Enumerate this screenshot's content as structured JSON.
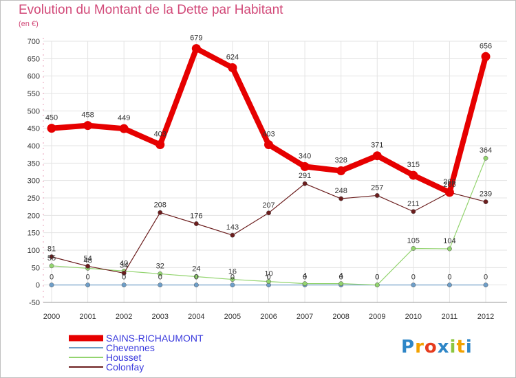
{
  "chart_data": {
    "type": "line",
    "title": "Evolution du Montant de la Dette par Habitant",
    "subtitle": "(en €)",
    "x": [
      "2000",
      "2001",
      "2002",
      "2003",
      "2004",
      "2005",
      "2006",
      "2007",
      "2008",
      "2009",
      "2010",
      "2011",
      "2012"
    ],
    "ylim": [
      -50,
      700
    ],
    "yticks": [
      -50,
      0,
      50,
      100,
      150,
      200,
      250,
      300,
      350,
      400,
      450,
      500,
      550,
      600,
      650,
      700
    ],
    "grid": true,
    "legend_position": "bottom-left",
    "series": [
      {
        "name": "SAINS-RICHAUMONT",
        "color": "#e60000",
        "values": [
          450,
          458,
          449,
          403,
          679,
          624,
          403,
          340,
          328,
          371,
          315,
          266,
          656
        ],
        "labels": [
          "450",
          "458",
          "449",
          "403",
          "679",
          "624",
          "403",
          "340",
          "328",
          "371",
          "315",
          "266",
          "656"
        ]
      },
      {
        "name": "Chevennes",
        "color": "#6e9ec8",
        "values": [
          0,
          0,
          0,
          0,
          0,
          0,
          0,
          0,
          0,
          0,
          0,
          0,
          0
        ],
        "labels": [
          "0",
          "0",
          "0",
          "0",
          "0",
          "0",
          "0",
          "0",
          "0",
          "0",
          "0",
          "0",
          "0"
        ]
      },
      {
        "name": "Housset",
        "color": "#93d46f",
        "values": [
          55,
          48,
          40,
          32,
          24,
          16,
          10,
          4,
          4,
          0,
          105,
          104,
          364
        ],
        "labels": [
          "55",
          "48",
          "40",
          "32",
          "24",
          "16",
          "10",
          "4",
          "4",
          "0",
          "105",
          "104",
          "364"
        ]
      },
      {
        "name": "Colonfay",
        "color": "#6b1d1d",
        "values": [
          81,
          54,
          34,
          208,
          176,
          143,
          207,
          291,
          248,
          257,
          211,
          266,
          239
        ],
        "labels": [
          "81",
          "54",
          "34",
          "208",
          "176",
          "143",
          "207",
          "291",
          "248",
          "257",
          "211",
          "266",
          "239"
        ]
      }
    ]
  },
  "legend": {
    "items": [
      {
        "label": "SAINS-RICHAUMONT",
        "color": "#e60000"
      },
      {
        "label": "Chevennes",
        "color": "#6e9ec8"
      },
      {
        "label": "Housset",
        "color": "#93d46f"
      },
      {
        "label": "Colonfay",
        "color": "#6b1d1d"
      }
    ]
  },
  "logo": {
    "letters": [
      "P",
      "r",
      "o",
      "x",
      "i",
      "t",
      "i"
    ],
    "colors": [
      "#2e86c7",
      "#f2a100",
      "#e63c1e",
      "#2e86c7",
      "#8cc63f",
      "#f2a100",
      "#2e86c7"
    ]
  }
}
